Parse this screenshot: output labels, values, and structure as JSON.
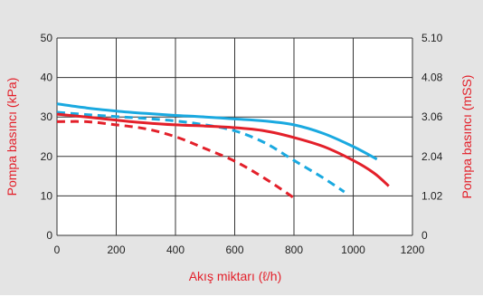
{
  "chart_data": {
    "type": "line",
    "xlabel": "Akış miktarı (ℓ/h)",
    "ylabel_left": "Pompa basıncı (kPa)",
    "ylabel_right": "Pompa basıncı (mSS)",
    "xlim": [
      0,
      1200
    ],
    "ylim": [
      0,
      50
    ],
    "x_ticks": [
      0,
      200,
      400,
      600,
      800,
      1000,
      1200
    ],
    "y_ticks_left": [
      0,
      10,
      20,
      30,
      40,
      50
    ],
    "y_ticks_right": [
      "0",
      "1.02",
      "2.04",
      "3.06",
      "4.08",
      "5.10"
    ],
    "grid": true,
    "colors": {
      "blue": "#1aa9e0",
      "red": "#e3202a",
      "label_red": "#e3202a",
      "grid": "#333333",
      "panel_bg": "#e4e4e4",
      "plot_bg": "#ffffff"
    },
    "series": [
      {
        "color": "#1aa9e0",
        "dash": false,
        "x": [
          0,
          100,
          200,
          300,
          400,
          500,
          600,
          700,
          800,
          900,
          1000,
          1080
        ],
        "y": [
          33.3,
          32.3,
          31.5,
          30.9,
          30.4,
          30.0,
          29.5,
          29.0,
          28.0,
          25.8,
          22.5,
          19.3
        ]
      },
      {
        "color": "#1aa9e0",
        "dash": true,
        "x": [
          0,
          100,
          200,
          300,
          400,
          500,
          600,
          700,
          800,
          900,
          970
        ],
        "y": [
          31.2,
          30.6,
          30.1,
          29.6,
          29.0,
          28.0,
          26.5,
          23.5,
          19.0,
          14.5,
          11.0
        ]
      },
      {
        "color": "#e3202a",
        "dash": false,
        "x": [
          0,
          100,
          200,
          300,
          400,
          500,
          600,
          700,
          800,
          900,
          1000,
          1070,
          1120
        ],
        "y": [
          30.7,
          30.0,
          29.2,
          28.5,
          28.0,
          27.7,
          27.3,
          26.5,
          24.8,
          22.5,
          19.0,
          15.8,
          12.5
        ]
      },
      {
        "color": "#e3202a",
        "dash": true,
        "x": [
          0,
          100,
          200,
          300,
          400,
          500,
          600,
          700,
          800
        ],
        "y": [
          28.8,
          28.8,
          28.0,
          27.0,
          25.0,
          22.0,
          18.8,
          14.5,
          9.5
        ]
      }
    ]
  }
}
